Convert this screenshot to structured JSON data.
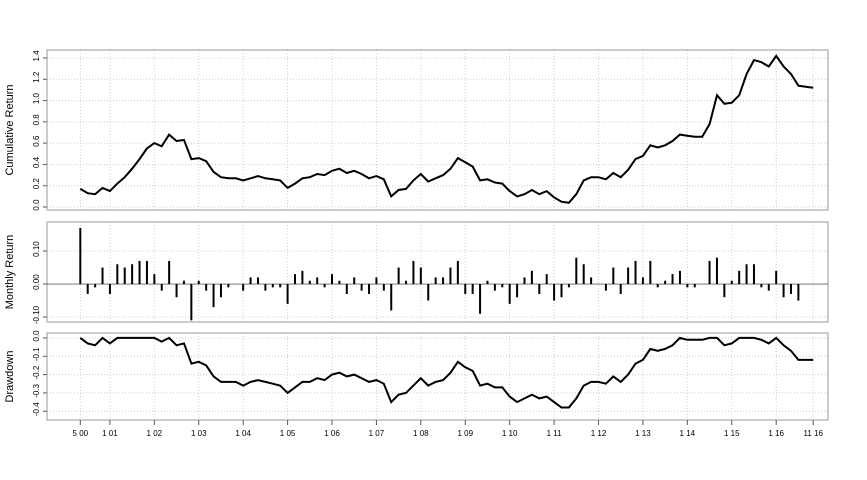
{
  "chart_data": [
    {
      "type": "line",
      "y_label": "Cumulative Return",
      "color": "#000000",
      "grid": true,
      "x": [
        0,
        2,
        4,
        6,
        8,
        10,
        12,
        14,
        16,
        18,
        20,
        22,
        24,
        26,
        28,
        30,
        32,
        34,
        36,
        38,
        40,
        42,
        44,
        46,
        48,
        50,
        52,
        54,
        56,
        58,
        60,
        62,
        64,
        66,
        68,
        70,
        72,
        74,
        76,
        78,
        80,
        82,
        84,
        86,
        88,
        90,
        92,
        94,
        96,
        98,
        100,
        102,
        104,
        106,
        108,
        110,
        112,
        114,
        116,
        118,
        120,
        122,
        124,
        126,
        128,
        130,
        132,
        134,
        136,
        138,
        140,
        142,
        144,
        146,
        148,
        150,
        152,
        154,
        156,
        158,
        160,
        162,
        164,
        166,
        168,
        170,
        172,
        174,
        176,
        178,
        180,
        182,
        184,
        186,
        188,
        190,
        192,
        194,
        196,
        198
      ],
      "values": [
        0.17,
        0.13,
        0.12,
        0.18,
        0.15,
        0.22,
        0.28,
        0.36,
        0.45,
        0.55,
        0.6,
        0.57,
        0.68,
        0.62,
        0.63,
        0.45,
        0.46,
        0.43,
        0.33,
        0.28,
        0.27,
        0.27,
        0.25,
        0.27,
        0.29,
        0.27,
        0.26,
        0.25,
        0.18,
        0.22,
        0.27,
        0.28,
        0.31,
        0.3,
        0.34,
        0.36,
        0.32,
        0.34,
        0.31,
        0.27,
        0.29,
        0.26,
        0.1,
        0.16,
        0.17,
        0.25,
        0.31,
        0.24,
        0.27,
        0.3,
        0.36,
        0.46,
        0.42,
        0.38,
        0.25,
        0.26,
        0.23,
        0.22,
        0.15,
        0.1,
        0.12,
        0.16,
        0.12,
        0.15,
        0.09,
        0.05,
        0.04,
        0.12,
        0.25,
        0.28,
        0.28,
        0.26,
        0.32,
        0.28,
        0.35,
        0.45,
        0.48,
        0.58,
        0.56,
        0.58,
        0.62,
        0.68,
        0.67,
        0.66,
        0.66,
        0.78,
        1.05,
        0.97,
        0.98,
        1.05,
        1.25,
        1.38,
        1.36,
        1.32,
        1.42,
        1.32,
        1.25,
        1.14,
        1.13,
        1.12
      ],
      "xlim": [
        -9,
        202
      ],
      "ylim": [
        -0.028,
        1.475
      ],
      "yticks": [
        {
          "value": 0,
          "label": "0.0"
        },
        0.2,
        0.4,
        0.6,
        0.8,
        {
          "value": 1,
          "label": "1.0"
        },
        1.2,
        1.4
      ]
    },
    {
      "type": "bar",
      "y_label": "Monthly Return",
      "color": "#000000",
      "grid": true,
      "x": [
        0,
        2,
        4,
        6,
        8,
        10,
        12,
        14,
        16,
        18,
        20,
        22,
        24,
        26,
        28,
        30,
        32,
        34,
        36,
        38,
        40,
        42,
        44,
        46,
        48,
        50,
        52,
        54,
        56,
        58,
        60,
        62,
        64,
        66,
        68,
        70,
        72,
        74,
        76,
        78,
        80,
        82,
        84,
        86,
        88,
        90,
        92,
        94,
        96,
        98,
        100,
        102,
        104,
        106,
        108,
        110,
        112,
        114,
        116,
        118,
        120,
        122,
        124,
        126,
        128,
        130,
        132,
        134,
        136,
        138,
        140,
        142,
        144,
        146,
        148,
        150,
        152,
        154,
        156,
        158,
        160,
        162,
        164,
        166,
        168,
        170,
        172,
        174,
        176,
        178,
        180,
        182,
        184,
        186,
        188,
        190,
        192,
        194,
        196,
        198
      ],
      "values": [
        0.17,
        -0.03,
        -0.01,
        0.05,
        -0.03,
        0.06,
        0.05,
        0.06,
        0.07,
        0.07,
        0.03,
        -0.02,
        0.07,
        -0.04,
        0.01,
        -0.11,
        0.01,
        -0.02,
        -0.07,
        -0.04,
        -0.01,
        0,
        -0.02,
        0.02,
        0.02,
        -0.02,
        -0.01,
        -0.01,
        -0.06,
        0.03,
        0.04,
        0.01,
        0.02,
        -0.01,
        0.03,
        0.01,
        -0.03,
        0.02,
        -0.02,
        -0.03,
        0.02,
        -0.02,
        -0.08,
        0.05,
        0.01,
        0.07,
        0.05,
        -0.05,
        0.02,
        0.02,
        0.05,
        0.07,
        -0.03,
        -0.03,
        -0.09,
        0.01,
        -0.02,
        -0.01,
        -0.06,
        -0.04,
        0.02,
        0.04,
        -0.03,
        0.03,
        -0.05,
        -0.04,
        -0.01,
        0.08,
        0.06,
        0.02,
        0,
        -0.02,
        0.05,
        -0.03,
        0.05,
        0.07,
        0.02,
        0.07,
        -0.01,
        0.01,
        0.03,
        0.04,
        -0.01,
        -0.01,
        0,
        0.07,
        0.08,
        -0.04,
        0.01,
        0.04,
        0.06,
        0.06,
        -0.01,
        -0.02,
        0.04,
        -0.04,
        -0.03,
        -0.05,
        0,
        0
      ],
      "xlim": [
        -9,
        202
      ],
      "ylim": [
        -0.115,
        0.188
      ],
      "yticks": [
        {
          "value": -0.1,
          "label": "-0.10"
        },
        {
          "value": 0,
          "label": "0.00"
        },
        {
          "value": 0.1,
          "label": "0.10"
        }
      ]
    },
    {
      "type": "line",
      "y_label": "Drawdown",
      "color": "#000000",
      "grid": true,
      "x": [
        0,
        2,
        4,
        6,
        8,
        10,
        12,
        14,
        16,
        18,
        20,
        22,
        24,
        26,
        28,
        30,
        32,
        34,
        36,
        38,
        40,
        42,
        44,
        46,
        48,
        50,
        52,
        54,
        56,
        58,
        60,
        62,
        64,
        66,
        68,
        70,
        72,
        74,
        76,
        78,
        80,
        82,
        84,
        86,
        88,
        90,
        92,
        94,
        96,
        98,
        100,
        102,
        104,
        106,
        108,
        110,
        112,
        114,
        116,
        118,
        120,
        122,
        124,
        126,
        128,
        130,
        132,
        134,
        136,
        138,
        140,
        142,
        144,
        146,
        148,
        150,
        152,
        154,
        156,
        158,
        160,
        162,
        164,
        166,
        168,
        170,
        172,
        174,
        176,
        178,
        180,
        182,
        184,
        186,
        188,
        190,
        192,
        194,
        196,
        198
      ],
      "values": [
        0,
        -0.03,
        -0.04,
        0,
        -0.03,
        0,
        0,
        0,
        0,
        0,
        0,
        -0.02,
        0,
        -0.04,
        -0.03,
        -0.14,
        -0.13,
        -0.15,
        -0.21,
        -0.24,
        -0.24,
        -0.24,
        -0.26,
        -0.24,
        -0.23,
        -0.24,
        -0.25,
        -0.26,
        -0.3,
        -0.27,
        -0.24,
        -0.24,
        -0.22,
        -0.23,
        -0.2,
        -0.19,
        -0.21,
        -0.2,
        -0.22,
        -0.24,
        -0.23,
        -0.25,
        -0.35,
        -0.31,
        -0.3,
        -0.26,
        -0.22,
        -0.26,
        -0.24,
        -0.23,
        -0.19,
        -0.13,
        -0.16,
        -0.18,
        -0.26,
        -0.25,
        -0.27,
        -0.27,
        -0.32,
        -0.35,
        -0.33,
        -0.31,
        -0.33,
        -0.32,
        -0.35,
        -0.38,
        -0.38,
        -0.33,
        -0.26,
        -0.24,
        -0.24,
        -0.25,
        -0.21,
        -0.24,
        -0.2,
        -0.14,
        -0.12,
        -0.06,
        -0.07,
        -0.06,
        -0.04,
        0,
        -0.01,
        -0.01,
        -0.01,
        0,
        0,
        -0.04,
        -0.03,
        0,
        0,
        0,
        -0.01,
        -0.03,
        0,
        -0.04,
        -0.07,
        -0.12,
        -0.12,
        -0.12
      ],
      "xlim": [
        -9,
        202
      ],
      "ylim": [
        -0.448,
        0.027
      ],
      "yticks": [
        -0.4,
        -0.3,
        -0.2,
        -0.1,
        {
          "value": 0,
          "label": "0.0"
        }
      ],
      "xticks": [
        {
          "value": 0,
          "label": "5 00"
        },
        {
          "value": 8,
          "label": "1 01"
        },
        {
          "value": 20,
          "label": "1 02"
        },
        {
          "value": 32,
          "label": "1 03"
        },
        {
          "value": 44,
          "label": "1 04"
        },
        {
          "value": 56,
          "label": "1 05"
        },
        {
          "value": 68,
          "label": "1 06"
        },
        {
          "value": 80,
          "label": "1 07"
        },
        {
          "value": 92,
          "label": "1 08"
        },
        {
          "value": 104,
          "label": "1 09"
        },
        {
          "value": 116,
          "label": "1 10"
        },
        {
          "value": 128,
          "label": "1 11"
        },
        {
          "value": 140,
          "label": "1 12"
        },
        {
          "value": 152,
          "label": "1 13"
        },
        {
          "value": 164,
          "label": "1 14"
        },
        {
          "value": 176,
          "label": "1 15"
        },
        {
          "value": 188,
          "label": "1 16"
        },
        {
          "value": 198,
          "label": "11 16"
        }
      ]
    }
  ]
}
